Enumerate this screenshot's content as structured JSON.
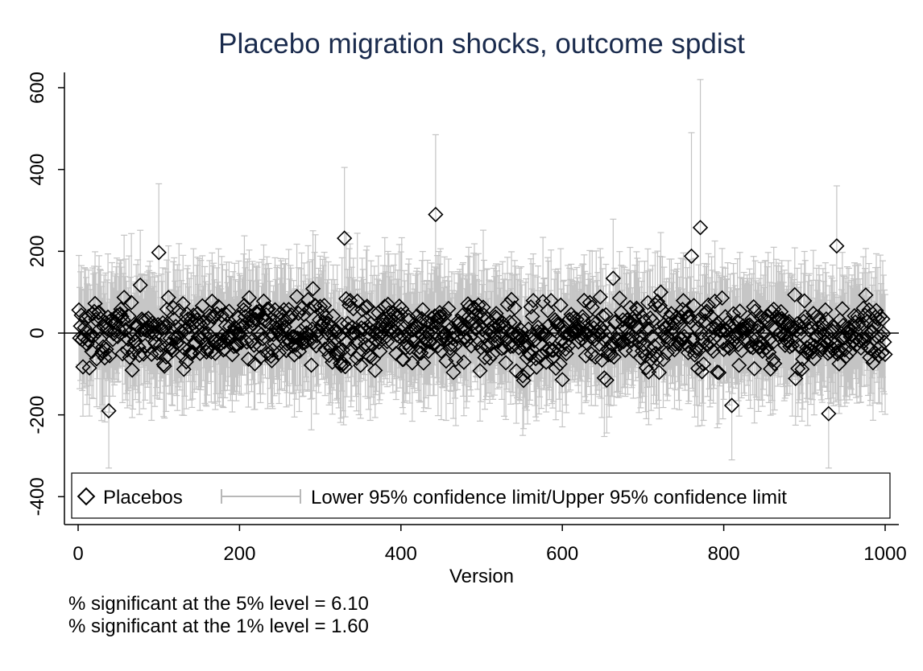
{
  "chart_data": {
    "type": "scatter",
    "title": "Placebo migration shocks, outcome spdist",
    "xlabel": "Version",
    "ylabel": "",
    "xlim": [
      0,
      1000
    ],
    "ylim": [
      -400,
      600
    ],
    "xticks": [
      "0",
      "200",
      "400",
      "600",
      "800",
      "1000"
    ],
    "yticks": [
      "-400",
      "-200",
      "0",
      "200",
      "400",
      "600"
    ],
    "reference_line_y": 0,
    "grid": false,
    "legend_position": "bottom-inside",
    "legend": [
      "Placebos",
      "Lower 95% confidence limit/Upper 95% confidence limit"
    ],
    "series": [
      {
        "name": "Placebos",
        "marker": "hollow-diamond",
        "color": "#000000",
        "n_points": 1000,
        "approx_range": [
          -195,
          290
        ]
      },
      {
        "name": "Lower 95% confidence limit/Upper 95% confidence limit",
        "marker": "capped-spike",
        "color": "#b8b8b8"
      }
    ],
    "notable_points": [
      {
        "x": 443,
        "y": 290,
        "upper": 485,
        "lower": 100
      },
      {
        "x": 771,
        "y": 258,
        "upper": 620,
        "lower": -100
      },
      {
        "x": 940,
        "y": 213,
        "upper": 360,
        "lower": 60
      },
      {
        "x": 330,
        "y": 232,
        "upper": 405,
        "lower": 60
      },
      {
        "x": 100,
        "y": 197,
        "upper": 365,
        "lower": 30
      },
      {
        "x": 760,
        "y": 188,
        "upper": 490,
        "lower": -110
      },
      {
        "x": 38,
        "y": -190,
        "upper": -50,
        "lower": -330
      },
      {
        "x": 930,
        "y": -197,
        "upper": -60,
        "lower": -330
      },
      {
        "x": 810,
        "y": -177,
        "upper": -30,
        "lower": -310
      }
    ]
  },
  "notes": [
    "% significant at the 5% level = 6.10",
    "% significant at the 1% level = 1.60"
  ]
}
